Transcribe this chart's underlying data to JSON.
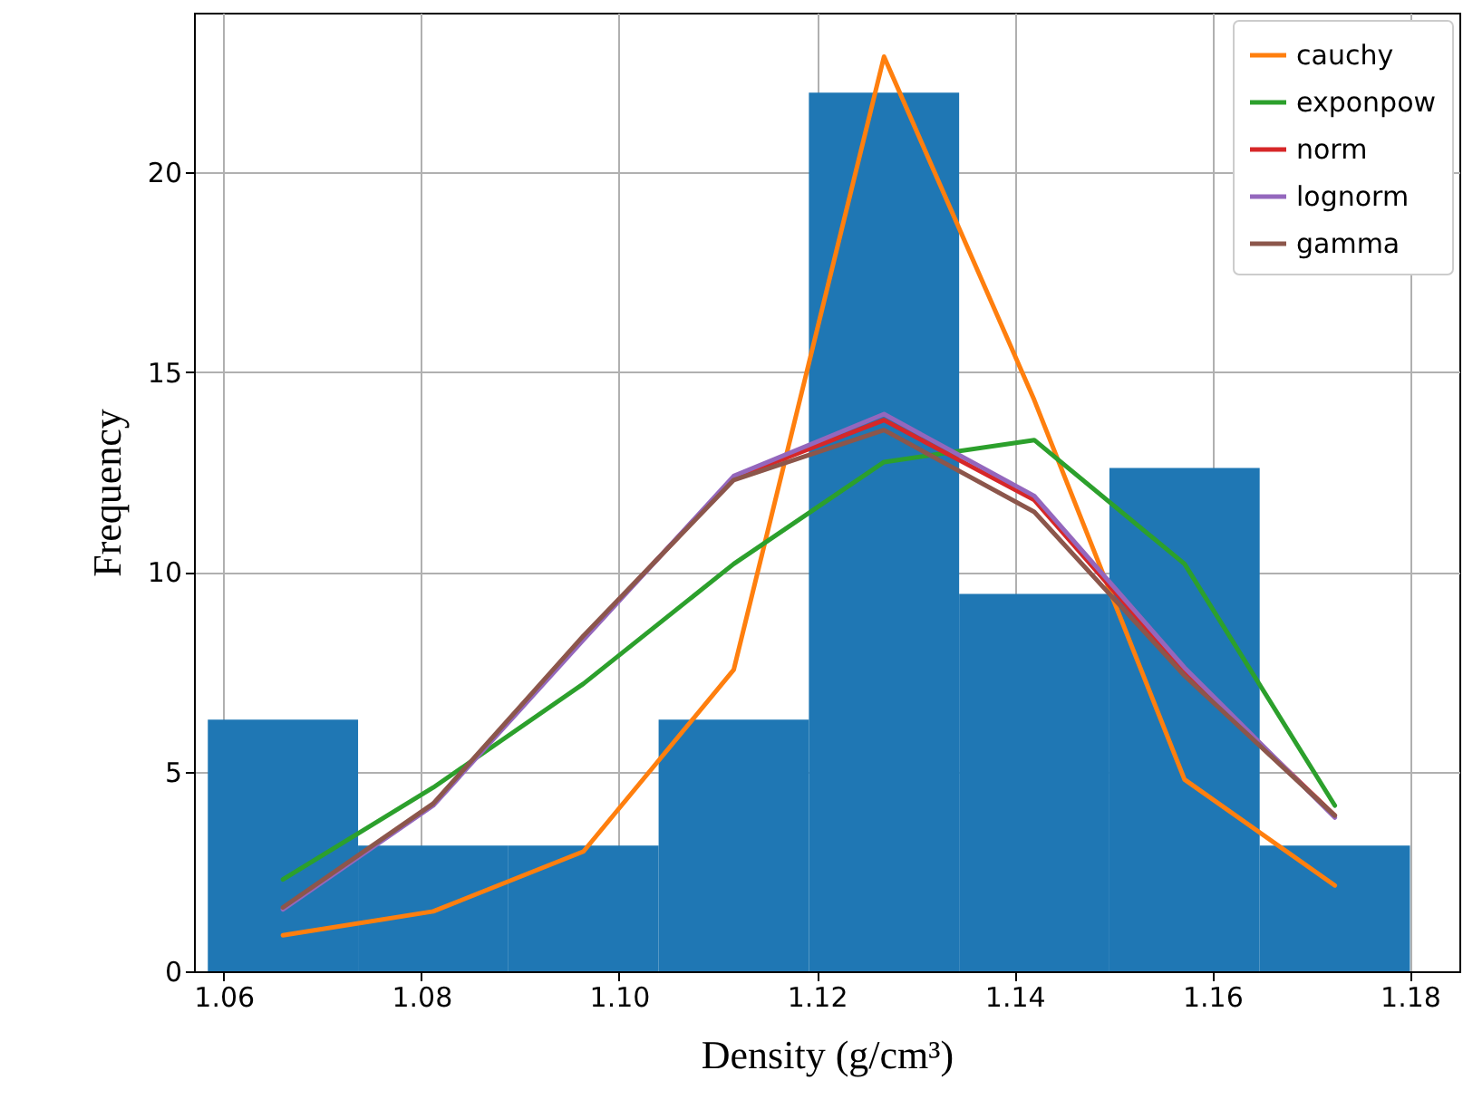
{
  "chart_data": {
    "type": "histogram",
    "xlabel": "Density (g/cm³)",
    "ylabel": "Frequency",
    "bins": [
      1.0584,
      1.0736,
      1.0888,
      1.104,
      1.1192,
      1.1344,
      1.1496,
      1.1648,
      1.18
    ],
    "values": [
      6.3,
      3.15,
      3.15,
      6.3,
      22,
      9.45,
      12.6,
      3.15
    ],
    "color": "#1f77b4",
    "series": [
      {
        "name": "cauchy",
        "type": "line",
        "color": "#ff7f0e",
        "x": [
          1.066,
          1.0812,
          1.0964,
          1.1116,
          1.1268,
          1.142,
          1.1572,
          1.1724
        ],
        "values": [
          0.9,
          1.5,
          3.0,
          7.55,
          22.9,
          14.3,
          4.8,
          2.15
        ]
      },
      {
        "name": "exponpow",
        "type": "line",
        "color": "#2ca02c",
        "x": [
          1.066,
          1.0812,
          1.0964,
          1.1116,
          1.1268,
          1.142,
          1.1572,
          1.1724
        ],
        "values": [
          2.3,
          4.6,
          7.2,
          10.2,
          12.75,
          13.3,
          10.2,
          4.15
        ]
      },
      {
        "name": "norm",
        "type": "line",
        "color": "#d62728",
        "x": [
          1.0964,
          1.1116,
          1.1268,
          1.142,
          1.1572,
          1.1724
        ],
        "values": [
          8.35,
          12.35,
          13.8,
          11.8,
          7.5,
          3.9
        ]
      },
      {
        "name": "lognorm",
        "type": "line",
        "color": "#9467bd",
        "x": [
          1.066,
          1.0812,
          1.0964,
          1.1116,
          1.1268,
          1.142,
          1.1572,
          1.1724
        ],
        "values": [
          1.55,
          4.15,
          8.3,
          12.4,
          13.95,
          11.9,
          7.6,
          3.85
        ]
      },
      {
        "name": "gamma",
        "type": "line",
        "color": "#8c564b",
        "x": [
          1.066,
          1.0812,
          1.0964,
          1.1116,
          1.1268,
          1.142,
          1.1572,
          1.1724
        ],
        "values": [
          1.6,
          4.2,
          8.4,
          12.3,
          13.55,
          11.5,
          7.4,
          3.9
        ]
      }
    ],
    "xlim": [
      1.057,
      1.185
    ],
    "ylim": [
      0,
      24
    ],
    "xticks": [
      1.06,
      1.08,
      {
        "value": 1.1,
        "label": "1.10"
      },
      1.12,
      1.14,
      1.16,
      1.18
    ],
    "yticks": [
      0,
      5,
      10,
      15,
      20
    ],
    "grid": true,
    "legend": "top right"
  }
}
